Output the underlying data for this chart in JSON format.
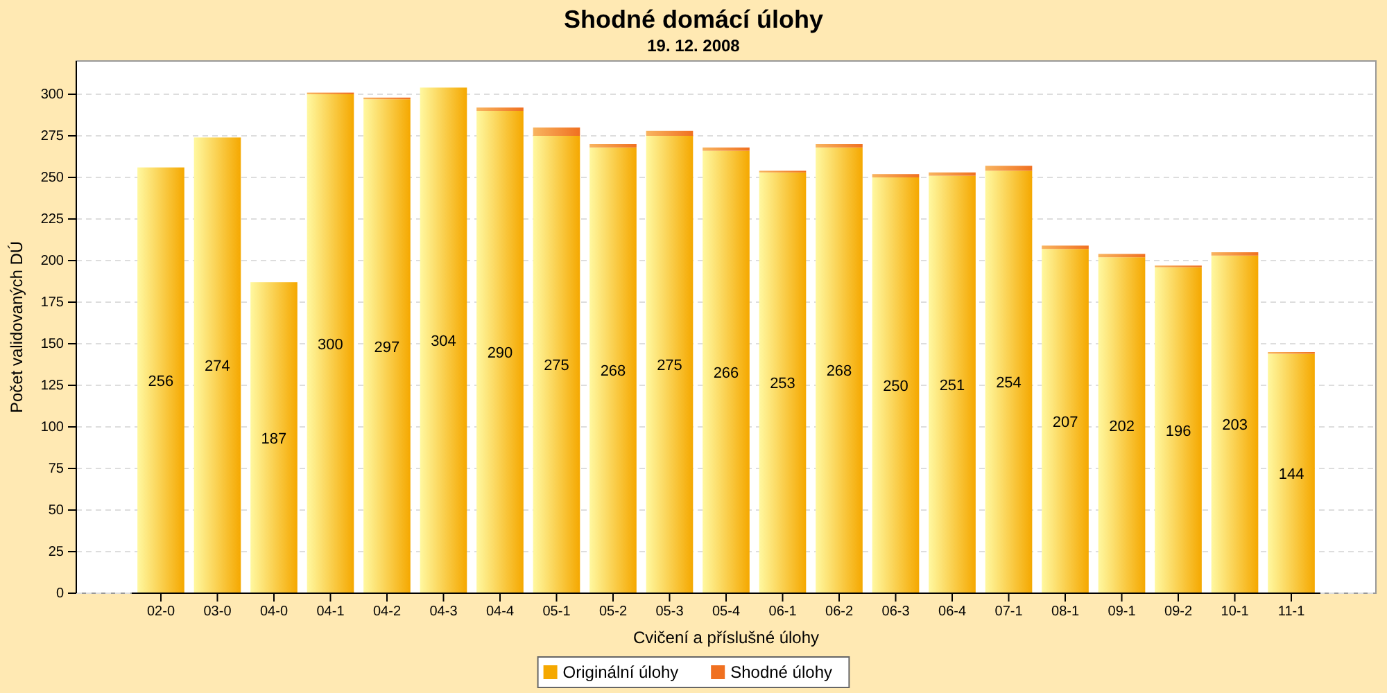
{
  "chart_data": {
    "type": "bar",
    "title": "Shodné domácí úlohy",
    "subtitle": "19. 12. 2008",
    "xlabel": "Cvičení a příslušné úlohy",
    "ylabel": "Počet validovaných DÚ",
    "categories": [
      "02-0",
      "03-0",
      "04-0",
      "04-1",
      "04-2",
      "04-3",
      "04-4",
      "05-1",
      "05-2",
      "05-3",
      "05-4",
      "06-1",
      "06-2",
      "06-3",
      "06-4",
      "07-1",
      "08-1",
      "09-1",
      "09-2",
      "10-1",
      "11-1"
    ],
    "stacked": true,
    "series": [
      {
        "name": "Originální úlohy",
        "color": "#f5a800",
        "values": [
          256,
          274,
          187,
          300,
          297,
          304,
          290,
          275,
          268,
          275,
          266,
          253,
          268,
          250,
          251,
          254,
          207,
          202,
          196,
          203,
          144
        ],
        "value_labels": [
          "256",
          "274",
          "187",
          "300",
          "297",
          "304",
          "290",
          "275",
          "268",
          "275",
          "266",
          "253",
          "268",
          "250",
          "251",
          "254",
          "207",
          "202",
          "196",
          "203",
          "144"
        ]
      },
      {
        "name": "Shodné úlohy",
        "color": "#f07020",
        "values": [
          0,
          0,
          0,
          1,
          1,
          0,
          2,
          5,
          2,
          3,
          2,
          1,
          2,
          2,
          2,
          3,
          2,
          2,
          1,
          2,
          1
        ]
      }
    ],
    "ylim": [
      0,
      320
    ],
    "yticks": [
      0,
      25,
      50,
      75,
      100,
      125,
      150,
      175,
      200,
      225,
      250,
      275,
      300
    ],
    "grid": "y",
    "legend": "bottom"
  }
}
